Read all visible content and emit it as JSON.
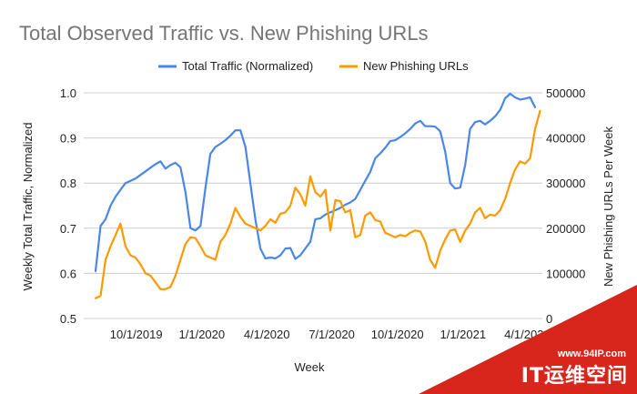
{
  "chart_data": {
    "type": "line",
    "title": "Total Observed Traffic vs. New Phishing URLs",
    "xlabel": "Week",
    "ylabel_left": "Weekly Total Traffic, Normalized",
    "ylabel_right": "New Phishing URLs Per Week",
    "legend_position": "top",
    "grid": true,
    "x_start": "2019-08-05",
    "x_step_days": 7,
    "x_tick_labels": [
      "10/1/2019",
      "1/1/2020",
      "4/1/2020",
      "7/1/2020",
      "10/1/2020",
      "1/1/2021",
      "4/1/2021"
    ],
    "x_tick_dates": [
      "2019-10-01",
      "2020-01-01",
      "2020-04-01",
      "2020-07-01",
      "2020-10-01",
      "2021-01-01",
      "2021-04-01"
    ],
    "yleft_range": [
      0.5,
      1.0
    ],
    "yleft_ticks": [
      "0.5",
      "0.6",
      "0.7",
      "0.8",
      "0.9",
      "1.0"
    ],
    "yright_range": [
      0,
      500000
    ],
    "yright_ticks": [
      "0",
      "100000",
      "200000",
      "300000",
      "400000",
      "500000"
    ],
    "series": [
      {
        "name": "Total Traffic (Normalized)",
        "axis": "left",
        "color": "#4a86e8",
        "values": [
          0.605,
          0.705,
          0.72,
          0.75,
          0.77,
          0.785,
          0.8,
          0.805,
          0.81,
          0.818,
          0.826,
          0.834,
          0.842,
          0.848,
          0.832,
          0.84,
          0.845,
          0.835,
          0.78,
          0.7,
          0.695,
          0.705,
          0.79,
          0.865,
          0.88,
          0.887,
          0.895,
          0.905,
          0.917,
          0.917,
          0.88,
          0.8,
          0.72,
          0.655,
          0.633,
          0.635,
          0.633,
          0.64,
          0.655,
          0.656,
          0.632,
          0.64,
          0.655,
          0.67,
          0.72,
          0.722,
          0.73,
          0.735,
          0.74,
          0.745,
          0.752,
          0.757,
          0.765,
          0.785,
          0.805,
          0.825,
          0.855,
          0.866,
          0.878,
          0.893,
          0.895,
          0.902,
          0.91,
          0.92,
          0.932,
          0.938,
          0.926,
          0.926,
          0.925,
          0.915,
          0.87,
          0.8,
          0.788,
          0.79,
          0.84,
          0.92,
          0.935,
          0.938,
          0.93,
          0.938,
          0.948,
          0.962,
          0.988,
          0.998,
          0.99,
          0.985,
          0.987,
          0.99,
          0.968
        ]
      },
      {
        "name": "New Phishing URLs",
        "axis": "right",
        "color": "#ff9900",
        "values": [
          45000,
          50000,
          130000,
          160000,
          185000,
          210000,
          160000,
          140000,
          135000,
          120000,
          100000,
          95000,
          80000,
          65000,
          65000,
          70000,
          95000,
          130000,
          165000,
          180000,
          178000,
          160000,
          140000,
          135000,
          130000,
          170000,
          185000,
          210000,
          245000,
          225000,
          210000,
          205000,
          200000,
          195000,
          205000,
          220000,
          212000,
          232000,
          235000,
          250000,
          290000,
          275000,
          250000,
          315000,
          280000,
          270000,
          285000,
          195000,
          262000,
          260000,
          235000,
          240000,
          180000,
          185000,
          228000,
          235000,
          218000,
          215000,
          190000,
          185000,
          180000,
          185000,
          182000,
          190000,
          195000,
          193000,
          170000,
          130000,
          112000,
          150000,
          175000,
          195000,
          197000,
          170000,
          195000,
          210000,
          235000,
          245000,
          222000,
          230000,
          228000,
          240000,
          265000,
          300000,
          330000,
          348000,
          343000,
          355000,
          420000,
          460000
        ]
      }
    ]
  },
  "watermark": {
    "url": "www.94IP.com",
    "brand": "IT运维空间",
    "color": "#d9261c"
  }
}
